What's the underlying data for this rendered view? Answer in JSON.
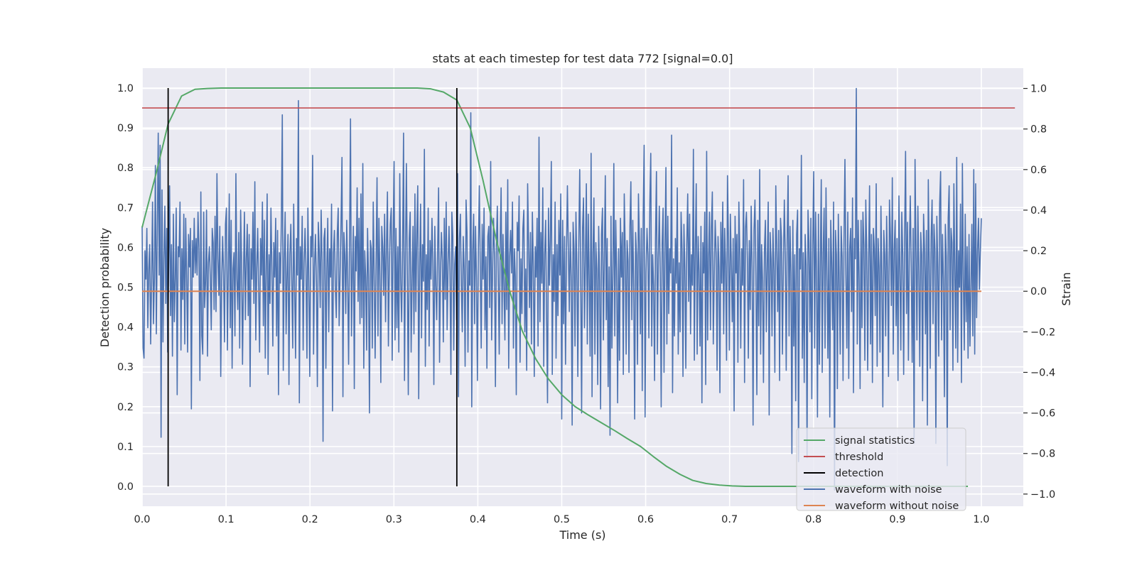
{
  "chart_data": {
    "type": "line",
    "title": "stats at each timestep for test data 772 [signal=0.0]",
    "xlabel": "Time (s)",
    "ylabel": "Detection probability",
    "y2label": "Strain",
    "xlim": [
      0.0,
      1.05
    ],
    "ylim": [
      -0.05,
      1.05
    ],
    "y2lim": [
      -1.06,
      1.1
    ],
    "xticks": [
      0.0,
      0.1,
      0.2,
      0.3,
      0.4,
      0.5,
      0.6,
      0.7,
      0.8,
      0.9,
      1.0
    ],
    "xtick_labels": [
      "0.0",
      "0.1",
      "0.2",
      "0.3",
      "0.4",
      "0.5",
      "0.6",
      "0.7",
      "0.8",
      "0.9",
      "1.0"
    ],
    "yticks": [
      0.0,
      0.1,
      0.2,
      0.3,
      0.4,
      0.5,
      0.6,
      0.7,
      0.8,
      0.9,
      1.0
    ],
    "ytick_labels": [
      "0.0",
      "0.1",
      "0.2",
      "0.3",
      "0.4",
      "0.5",
      "0.6",
      "0.7",
      "0.8",
      "0.9",
      "1.0"
    ],
    "y2ticks": [
      -1.0,
      -0.8,
      -0.6,
      -0.4,
      -0.2,
      0.0,
      0.2,
      0.4,
      0.6,
      0.8,
      1.0
    ],
    "y2tick_labels": [
      "−1.0",
      "−0.8",
      "−0.6",
      "−0.4",
      "−0.2",
      "0.0",
      "0.2",
      "0.4",
      "0.6",
      "0.8",
      "1.0"
    ],
    "grid": true,
    "legend_position": "lower-right",
    "series": [
      {
        "name": "signal statistics",
        "color": "#55a868",
        "axis": "left",
        "x": [
          0.0,
          0.016,
          0.031,
          0.047,
          0.063,
          0.078,
          0.094,
          0.109,
          0.125,
          0.141,
          0.156,
          0.172,
          0.188,
          0.203,
          0.219,
          0.234,
          0.25,
          0.266,
          0.281,
          0.297,
          0.313,
          0.328,
          0.344,
          0.359,
          0.375,
          0.391,
          0.406,
          0.422,
          0.438,
          0.453,
          0.469,
          0.484,
          0.5,
          0.516,
          0.531,
          0.547,
          0.563,
          0.578,
          0.594,
          0.609,
          0.625,
          0.641,
          0.656,
          0.672,
          0.688,
          0.703,
          0.719,
          0.734,
          0.75,
          0.766,
          0.781,
          0.797,
          0.813,
          0.828,
          0.844,
          0.859,
          0.875,
          0.891,
          0.906,
          0.922,
          0.938,
          0.953,
          0.969,
          0.984
        ],
        "y": [
          0.65,
          0.78,
          0.91,
          0.98,
          0.997,
          0.999,
          1.0,
          1.0,
          1.0,
          1.0,
          1.0,
          1.0,
          1.0,
          1.0,
          1.0,
          1.0,
          1.0,
          1.0,
          1.0,
          1.0,
          1.0,
          1.0,
          0.998,
          0.99,
          0.97,
          0.9,
          0.77,
          0.62,
          0.49,
          0.39,
          0.32,
          0.27,
          0.23,
          0.2,
          0.18,
          0.16,
          0.14,
          0.12,
          0.1,
          0.075,
          0.05,
          0.03,
          0.015,
          0.007,
          0.003,
          0.001,
          0.0,
          0.0,
          0.0,
          0.0,
          0.0,
          0.0,
          0.0,
          0.0,
          0.0,
          0.0,
          0.0,
          0.0,
          0.0,
          0.0,
          0.0,
          0.0,
          0.0,
          0.0
        ]
      },
      {
        "name": "threshold",
        "color": "#c44e52",
        "axis": "left",
        "x": [
          0.0,
          1.04
        ],
        "y": [
          0.95,
          0.95
        ]
      },
      {
        "name": "detection",
        "color": "#000000",
        "axis": "left",
        "vlines": [
          0.031,
          0.375
        ],
        "ymin": 0.0,
        "ymax": 1.0
      },
      {
        "name": "waveform with noise",
        "color": "#4c72b0",
        "axis": "right",
        "x_start": 0.0,
        "x_end": 1.0,
        "y": [
          0.32,
          -0.28,
          -0.33,
          0.2,
          0.06,
          0.31,
          -0.18,
          0.11,
          0.23,
          -0.26,
          0.05,
          0.44,
          -0.16,
          0.07,
          0.62,
          -0.21,
          0.29,
          0.78,
          0.08,
          0.72,
          -0.72,
          0.5,
          -0.25,
          0.16,
          0.42,
          -0.06,
          0.31,
          -0.3,
          0.12,
          0.52,
          -0.12,
          0.23,
          -0.32,
          0.38,
          -0.15,
          0.06,
          0.41,
          -0.51,
          0.22,
          0.17,
          0.44,
          -0.29,
          0.21,
          -0.04,
          0.38,
          -0.26,
          0.36,
          0.08,
          -0.3,
          0.28,
          0.12,
          0.31,
          -0.58,
          0.25,
          0.07,
          0.36,
          0.09,
          0.26,
          0.08,
          0.39,
          0.21,
          -0.44,
          0.49,
          -0.22,
          -0.31,
          0.39,
          -0.08,
          0.05,
          0.4,
          -0.32,
          0.14,
          0.22,
          0.06,
          -0.19,
          0.31,
          0.24,
          -0.09,
          0.37,
          -0.1,
          0.58,
          0.16,
          -0.02,
          0.32,
          -0.42,
          0.05,
          0.27,
          0.09,
          -0.25,
          0.33,
          0.41,
          -0.29,
          0.1,
          0.48,
          -0.18,
          0.35,
          -0.38,
          0.11,
          0.19,
          -0.22,
          0.58,
          0.06,
          -0.09,
          0.29,
          -0.28,
          0.4,
          0.14,
          -0.36,
          0.07,
          0.39,
          -0.14,
          0.16,
          0.33,
          -0.12,
          0.28,
          -0.47,
          0.21,
          0.06,
          0.39,
          -0.06,
          0.54,
          -0.24,
          0.11,
          0.31,
          0.01,
          -0.3,
          0.26,
          0.08,
          0.44,
          -0.17,
          0.35,
          -0.33,
          0.12,
          0.48,
          -0.41,
          0.18,
          -0.06,
          0.41,
          0.11,
          -0.27,
          0.24,
          0.07,
          0.36,
          -0.22,
          0.3,
          -0.51,
          0.19,
          0.04,
          0.35,
          0.87,
          -0.39,
          0.15,
          0.39,
          -0.21,
          0.07,
          0.28,
          -0.46,
          0.18,
          0.33,
          0.05,
          -0.28,
          0.43,
          0.02,
          -0.33,
          0.26,
          0.08,
          0.94,
          -0.55,
          0.22,
          0.06,
          0.37,
          -0.29,
          0.14,
          0.31,
          0.11,
          -0.33,
          0.41,
          0.05,
          -0.42,
          0.27,
          0.17,
          0.67,
          -0.31,
          0.12,
          0.28,
          0.04,
          -0.47,
          0.34,
          0.2,
          -0.08,
          0.4,
          0.14,
          -0.74,
          0.26,
          0.31,
          -0.38,
          0.11,
          0.36,
          -0.2,
          0.21,
          0.07,
          0.43,
          -0.59,
          0.19,
          0.3,
          0.02,
          -0.13,
          0.28,
          0.41,
          -0.17,
          0.08,
          0.34,
          0.66,
          -0.52,
          0.29,
          0.18,
          -0.11,
          0.35,
          0.06,
          -0.36,
          0.24,
          0.85,
          -0.22,
          0.09,
          0.32,
          -0.48,
          0.27,
          0.1,
          0.51,
          -0.05,
          0.36,
          -0.16,
          0.48,
          -0.13,
          0.63,
          -0.38,
          0.2,
          0.07,
          -0.29,
          0.31,
          0.07,
          -0.6,
          0.25,
          0.21,
          -0.28,
          0.44,
          0.07,
          -0.33,
          0.15,
          0.56,
          -0.22,
          0.36,
          0.08,
          -0.45,
          0.32,
          0.22,
          -0.02,
          0.38,
          -0.15,
          0.22,
          0.49,
          -0.27,
          0.12,
          0.33,
          0.41,
          -0.34,
          0.26,
          0.64,
          -0.24,
          0.31,
          -0.18,
          0.22,
          -0.3,
          0.58,
          0.05,
          -0.15,
          0.21,
          0.78,
          -0.44,
          0.17,
          0.63,
          0.08,
          -0.51,
          0.26,
          0.39,
          -0.3,
          0.05,
          0.32,
          -0.21,
          0.48,
          -0.1,
          0.29,
          0.52,
          -0.53,
          0.12,
          0.43,
          -0.23,
          0.23,
          0.05,
          0.7,
          -0.37,
          0.18,
          -0.09,
          0.41,
          -0.27,
          0.25,
          0.06,
          0.36,
          0.14,
          -0.46,
          0.32,
          0.03,
          -0.14,
          0.21,
          0.51,
          -0.35,
          0.09,
          0.29,
          0.15,
          -0.25,
          0.36,
          -0.04,
          0.44,
          -0.19,
          0.13,
          0.32,
          0.09,
          -0.41,
          0.39,
          0.27,
          -0.29,
          0.13,
          0.22,
          -0.14,
          0.58,
          -0.52,
          0.26,
          0.38,
          0.03,
          -0.2,
          0.27,
          0.11,
          -0.37,
          0.45,
          0.29,
          -0.3,
          0.15,
          0.03,
          0.88,
          -0.57,
          0.2,
          0.38,
          -0.16,
          0.32,
          0.07,
          -0.44,
          0.22,
          0.52,
          0.11,
          -0.28,
          0.33,
          0.06,
          0.41,
          -0.19,
          0.17,
          -0.38,
          0.27,
          0.32,
          -0.08,
          0.64,
          -0.24,
          0.1,
          0.36,
          0.18,
          -0.47,
          0.22,
          0.42,
          0.06,
          -0.31,
          0.23,
          0.51,
          -0.16,
          0.28,
          0.02,
          -0.24,
          0.39,
          -0.09,
          0.55,
          -0.38,
          0.17,
          0.3,
          0.09,
          0.44,
          -0.28,
          0.21,
          0.07,
          -0.51,
          0.34,
          0.2,
          0.47,
          -0.35,
          0.16,
          -0.11,
          0.31,
          0.4,
          -0.2,
          0.11,
          -0.39,
          0.53,
          0.24,
          -0.08,
          0.29,
          -0.26,
          0.39,
          0.12,
          -0.42,
          0.22,
          0.07,
          0.36,
          -0.27,
          0.76,
          -0.15,
          0.29,
          0.04,
          0.51,
          -0.37,
          0.18,
          0.35,
          -0.12,
          -0.55,
          0.41,
          0.03,
          0.26,
          0.64,
          -0.41,
          0.18,
          -0.05,
          0.44,
          -0.33,
          0.23,
          -0.12,
          0.35,
          0.08,
          0.48,
          -0.63,
          0.35,
          -0.16,
          0.27,
          -0.36,
          0.19,
          0.52,
          0.2,
          -0.1,
          0.29,
          0.07,
          -0.66,
          0.34,
          0.21,
          -0.27,
          0.39,
          0.1,
          -0.42,
          0.24,
          0.6,
          0.08,
          -0.6,
          0.31,
          0.46,
          -0.18,
          0.15,
          0.53,
          -0.26,
          0.38,
          0.06,
          -0.32,
          0.68,
          -0.52,
          0.19,
          0.46,
          -0.31,
          0.24,
          0.11,
          -0.46,
          0.32,
          0.05,
          -0.58,
          0.28,
          0.41,
          -0.24,
          0.17,
          0.57,
          -0.14,
          0.26,
          -0.47,
          0.12,
          -0.71,
          0.37,
          -0.28,
          0.09,
          0.63,
          -0.22,
          0.35,
          0.1,
          -0.55,
          0.21,
          -0.34,
          0.36,
          0.07,
          0.29,
          -0.41,
          0.48,
          0.21,
          -0.31,
          0.25,
          0.15,
          -0.4,
          0.32,
          0.54,
          -0.14,
          0.35,
          0.01,
          -0.63,
          0.29,
          0.18,
          -0.36,
          0.48,
          0.24,
          -0.21,
          0.31,
          -0.49,
          0.37,
          0.72,
          -0.62,
          0.09,
          0.31,
          0.18,
          -0.23,
          0.43,
          0.68,
          -0.27,
          0.18,
          0.03,
          -0.44,
          0.26,
          0.59,
          -0.31,
          0.16,
          0.42,
          0.09,
          -0.57,
          0.23,
          0.41,
          -0.4,
          0.21,
          0.61,
          -0.26,
          0.37,
          -0.11,
          0.21,
          0.09,
          0.77,
          -0.5,
          0.16,
          -0.22,
          0.26,
          0.04,
          0.51,
          -0.31,
          0.14,
          -0.2,
          0.39,
          0.21,
          -0.42,
          0.33,
          0.11,
          -0.38,
          0.23,
          0.48,
          -0.05,
          0.38,
          -0.21,
          0.18,
          0.03,
          0.7,
          -0.34,
          0.21,
          0.53,
          -0.31,
          0.27,
          0.1,
          -0.27,
          0.32,
          -0.55,
          0.24,
          0.09,
          0.39,
          -0.46,
          0.69,
          -0.24,
          0.16,
          0.39,
          -0.19,
          0.31,
          0.49,
          -0.26,
          0.07,
          0.35,
          0.19,
          -0.39,
          0.27,
          0.12,
          -0.5,
          0.34,
          0.04,
          0.44,
          -0.21,
          0.31,
          0.12,
          -0.34,
          0.57,
          0.25,
          -0.29,
          0.38,
          0.15,
          -0.15,
          0.26,
          -0.59,
          0.37,
          0.09,
          0.28,
          -0.35,
          0.44,
          0.18,
          -0.28,
          0.21,
          0.03,
          0.55,
          -0.45,
          0.31,
          0.39,
          0.16,
          -0.33,
          0.25,
          -0.09,
          0.42,
          0.11,
          -0.66,
          0.3,
          0.45,
          0.08,
          -0.51,
          0.35,
          -0.17,
          0.6,
          -0.31,
          0.23,
          0.05,
          -0.45,
          0.2,
          0.35,
          -0.2,
          0.13,
          0.44,
          -0.61,
          0.29,
          0.16,
          -0.22,
          0.31,
          0.1,
          -0.4,
          0.52,
          0.21,
          -0.1,
          0.3,
          -0.44,
          0.36,
          0.26,
          -0.31,
          0.12,
          0.45,
          0.18,
          -0.39,
          0.25,
          0.57,
          -0.22,
          0.32,
          0.09,
          -0.8,
          0.35,
          -0.27,
          0.18,
          -0.54,
          0.28,
          0.4,
          -0.84,
          0.21,
          0.11,
          0.67,
          -0.33,
          0.19,
          -0.45,
          0.28,
          0.13,
          -0.82,
          0.4,
          0.24,
          -0.2,
          0.36,
          -0.53,
          0.22,
          0.59,
          -0.28,
          0.39,
          0.1,
          -0.62,
          0.38,
          -0.36,
          0.15,
          0.55,
          -0.4,
          0.19,
          0.41,
          -0.28,
          0.51,
          0.08,
          -0.33,
          0.26,
          -0.62,
          0.35,
          0.14,
          -0.19,
          0.44,
          -0.98,
          0.3,
          0.18,
          -0.48,
          0.38,
          0.04,
          -0.31,
          0.32,
          0.17,
          -0.44,
          0.25,
          0.65,
          0.08,
          -0.28,
          0.39,
          -0.43,
          0.21,
          0.31,
          -0.1,
          0.46,
          -0.5,
          0.26,
          0.16,
          1.0,
          -0.26,
          0.35,
          0.06,
          -0.48,
          0.35,
          -0.18,
          0.39,
          0.23,
          -0.34,
          0.45,
          0.2,
          -0.39,
          0.16,
          0.52,
          -0.26,
          0.28,
          -0.45,
          0.31,
          0.21,
          -0.12,
          0.53,
          -0.37,
          0.26,
          0.12,
          -0.3,
          0.42,
          0.05,
          -0.57,
          0.3,
          0.18,
          -0.22,
          0.37,
          0.08,
          -0.42,
          0.45,
          0.27,
          -0.07,
          0.56,
          -0.31,
          0.21,
          0.35,
          -0.17,
          0.26,
          -0.44,
          0.47,
          0.1,
          -0.29,
          0.39,
          0.18,
          -0.41,
          0.27,
          0.69,
          -0.11,
          0.34,
          -0.34,
          0.2,
          0.47,
          0.12,
          -0.35,
          0.31,
          -0.75,
          0.65,
          0.2,
          -0.24,
          0.42,
          0.09,
          -0.37,
          0.29,
          0.18,
          -0.54,
          0.38,
          0.21,
          -0.21,
          0.3,
          -0.66,
          0.55,
          0.14,
          -0.38,
          0.27,
          0.45,
          -0.16,
          0.33,
          0.21,
          -0.75,
          0.37,
          0.12,
          -0.32,
          0.43,
          0.59,
          -0.24,
          0.28,
          0.06,
          -0.52,
          0.33,
          0.17,
          -0.86,
          0.36,
          0.52,
          -0.19,
          0.31,
          0.24,
          -0.39,
          0.53,
          0.11,
          -0.28,
          0.66,
          -0.35,
          0.2,
          0.02,
          0.43,
          -0.45,
          0.63,
          0.07,
          -0.29,
          0.38,
          -0.15,
          0.22,
          -0.33,
          0.28,
          -0.27,
          0.01,
          0.33,
          -0.22,
          0.6,
          -0.31,
          0.53,
          -0.13,
          0.2,
          0.36,
          0.01,
          0.2,
          0.36
        ]
      },
      {
        "name": "waveform without noise",
        "color": "#dd8452",
        "axis": "right",
        "x": [
          0.0,
          1.0
        ],
        "y": [
          0.0,
          0.0
        ]
      }
    ]
  }
}
